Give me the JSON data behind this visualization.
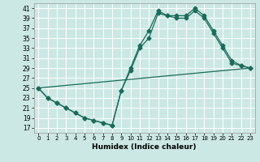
{
  "xlabel": "Humidex (Indice chaleur)",
  "bg_color": "#cce8e4",
  "grid_color": "#ffffff",
  "line_color": "#1a6b5a",
  "xlim": [
    -0.5,
    23.5
  ],
  "ylim": [
    16,
    42
  ],
  "xticks": [
    0,
    1,
    2,
    3,
    4,
    5,
    6,
    7,
    8,
    9,
    10,
    11,
    12,
    13,
    14,
    15,
    16,
    17,
    18,
    19,
    20,
    21,
    22,
    23
  ],
  "yticks": [
    17,
    19,
    21,
    23,
    25,
    27,
    29,
    31,
    33,
    35,
    37,
    39,
    41
  ],
  "line1_x": [
    0,
    1,
    2,
    3,
    4,
    5,
    6,
    7,
    8,
    9,
    10,
    11,
    12,
    13,
    14,
    15,
    16,
    17,
    18,
    19,
    20,
    21,
    22,
    23
  ],
  "line1_y": [
    25,
    23,
    22,
    21,
    20,
    19,
    18.5,
    18,
    17.5,
    24.5,
    28.5,
    33,
    35,
    40,
    39.5,
    39,
    39,
    40.5,
    39,
    36,
    33,
    30,
    29.5,
    29
  ],
  "line2_x": [
    0,
    1,
    2,
    3,
    4,
    5,
    6,
    7,
    8,
    9,
    10,
    11,
    12,
    13,
    14,
    15,
    16,
    17,
    18,
    19,
    20,
    21,
    22,
    23
  ],
  "line2_y": [
    25,
    23,
    22,
    21,
    20,
    19,
    18.5,
    18,
    17.5,
    24.5,
    29,
    33.5,
    36.5,
    40.5,
    39.5,
    39.5,
    39.5,
    41,
    39.5,
    36.5,
    33.5,
    30.5,
    29.5,
    29
  ],
  "line3_x": [
    0,
    23
  ],
  "line3_y": [
    25,
    29
  ]
}
